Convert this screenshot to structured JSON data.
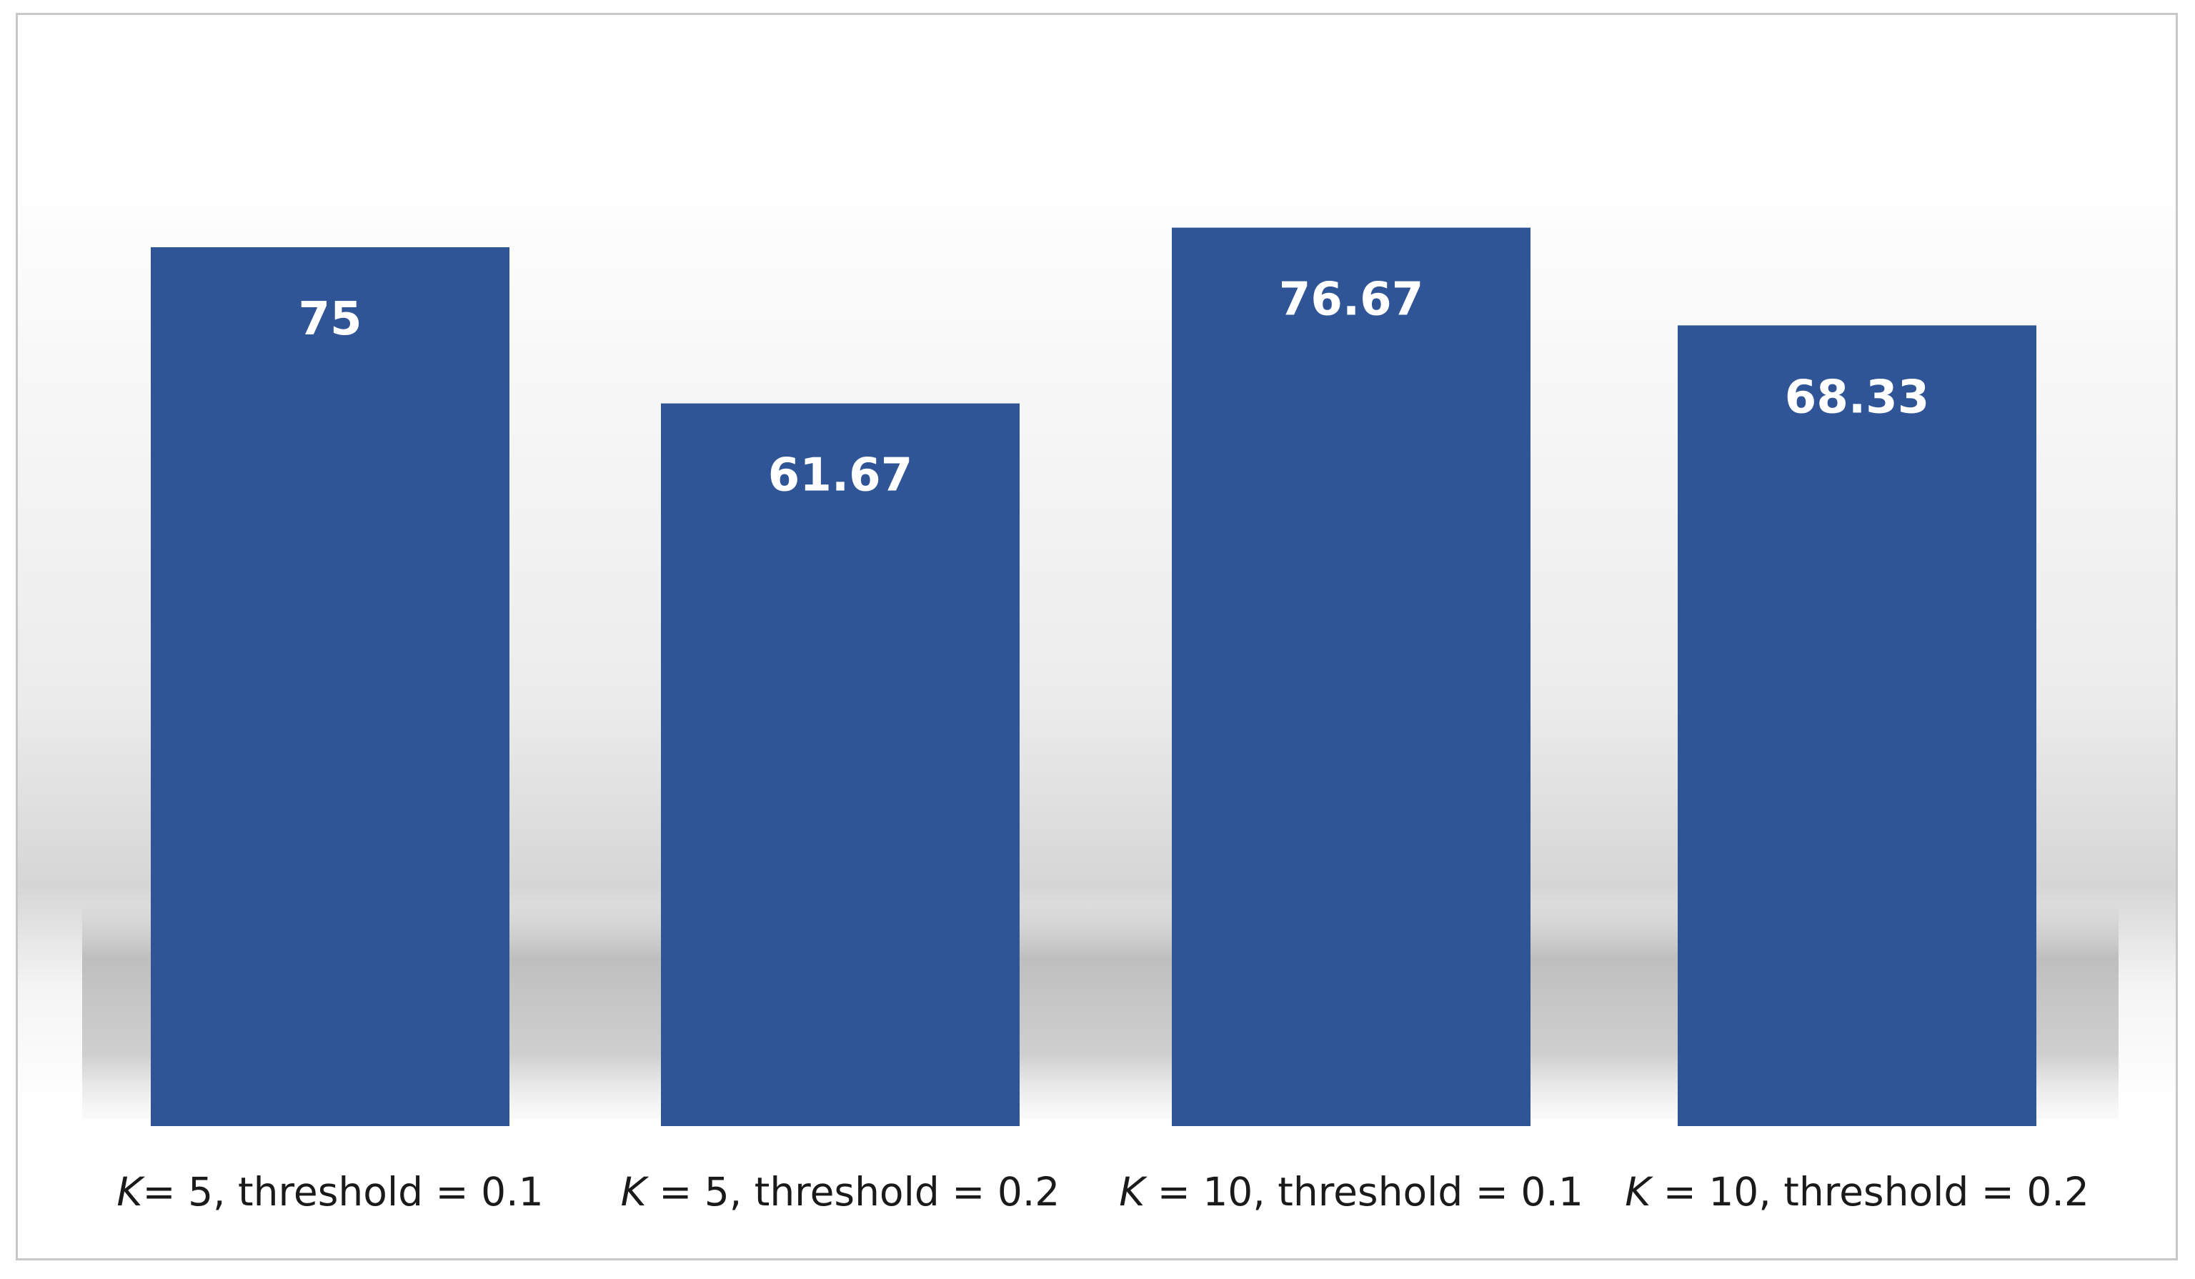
{
  "chart_data": {
    "type": "bar",
    "title": "",
    "xlabel": "",
    "ylabel": "",
    "categories": [
      {
        "var": "K",
        "rest": "= 5, threshold = 0.1"
      },
      {
        "var": "K",
        "rest": " = 5, threshold = 0.2"
      },
      {
        "var": "K",
        "rest": " = 10, threshold = 0.1"
      },
      {
        "var": "K",
        "rest": " = 10, threshold = 0.2"
      }
    ],
    "values": [
      75,
      61.67,
      76.67,
      68.33
    ],
    "value_labels": [
      "75",
      "61.67",
      "76.67",
      "68.33"
    ],
    "ylim": [
      0,
      80
    ],
    "grid": false,
    "legend": "none",
    "bar_color": "#305596",
    "label_color": "#ffffff",
    "background": "gradient-gray-with-shadow"
  }
}
